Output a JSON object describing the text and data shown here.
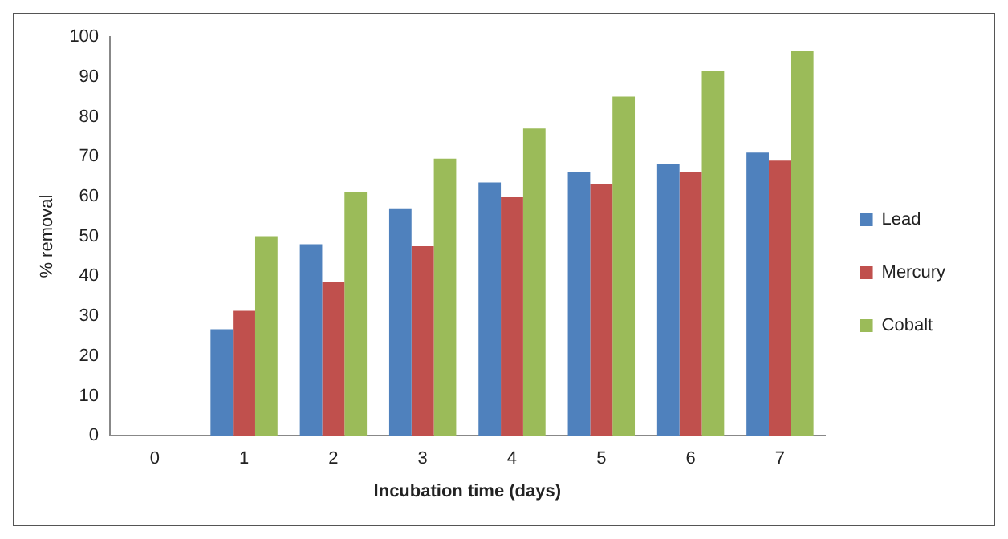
{
  "chart_data": {
    "type": "bar",
    "xlabel": "Incubation time (days)",
    "ylabel": "% removal",
    "categories": [
      "0",
      "1",
      "2",
      "3",
      "4",
      "5",
      "6",
      "7"
    ],
    "series": [
      {
        "name": "Lead",
        "color": "#4f81bd",
        "values": [
          0,
          26.7,
          48,
          57,
          63.5,
          66,
          68,
          71
        ]
      },
      {
        "name": "Mercury",
        "color": "#c0504d",
        "values": [
          0,
          31.3,
          38.5,
          47.5,
          60,
          63,
          66,
          69
        ]
      },
      {
        "name": "Cobalt",
        "color": "#9bbb59",
        "values": [
          0,
          50,
          61,
          69.5,
          77,
          85,
          91.5,
          96.5
        ]
      }
    ],
    "ylim": [
      0,
      100
    ],
    "yticks": [
      0,
      10,
      20,
      30,
      40,
      50,
      60,
      70,
      80,
      90,
      100
    ],
    "grid": false,
    "legend": "right"
  }
}
